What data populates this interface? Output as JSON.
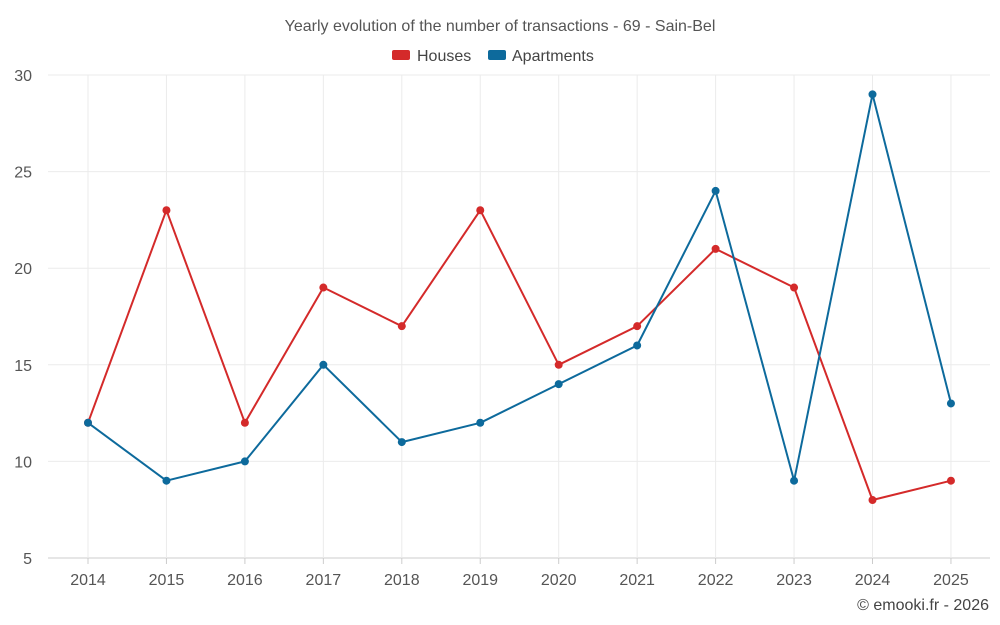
{
  "chart_data": {
    "type": "line",
    "title": "Yearly evolution of the number of transactions - 69 - Sain-Bel",
    "xlabel": "",
    "ylabel": "",
    "categories": [
      "2014",
      "2015",
      "2016",
      "2017",
      "2018",
      "2019",
      "2020",
      "2021",
      "2022",
      "2023",
      "2024",
      "2025"
    ],
    "ylim": [
      5,
      30
    ],
    "yticks": [
      5,
      10,
      15,
      20,
      25,
      30
    ],
    "grid": true,
    "legend_position": "top-center",
    "series": [
      {
        "name": "Houses",
        "color": "#d42a2a",
        "values": [
          12,
          23,
          12,
          19,
          17,
          23,
          15,
          17,
          21,
          19,
          8,
          9
        ]
      },
      {
        "name": "Apartments",
        "color": "#0d6a9c",
        "values": [
          12,
          9,
          10,
          15,
          11,
          12,
          14,
          16,
          24,
          9,
          29,
          13
        ]
      }
    ]
  },
  "credit": "© emooki.fr - 2026"
}
